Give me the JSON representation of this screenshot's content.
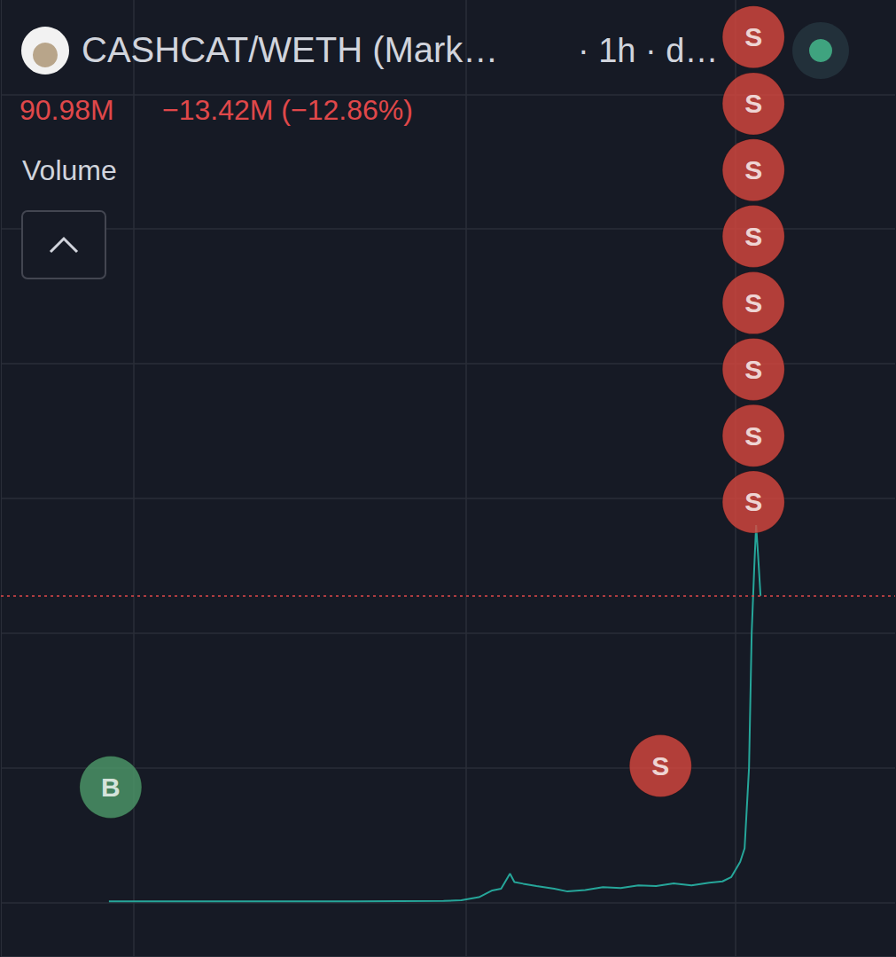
{
  "chart_data": {
    "type": "line",
    "title": "CASHCAT/WETH (Mark…",
    "subtitle": "· 1h · d…",
    "annotations": [
      "90.98M",
      "−13.42M (−12.86%)",
      "Volume"
    ],
    "x": [
      24.4,
      40,
      60,
      80,
      100,
      104,
      108,
      111,
      113,
      115,
      116,
      118,
      121,
      125,
      128,
      132,
      136,
      140,
      144,
      148,
      152,
      156,
      160,
      163,
      165,
      167,
      168,
      169,
      169.6,
      170.2,
      170.6,
      171,
      171.6
    ],
    "values": [
      0.3,
      0.3,
      0.3,
      0.3,
      0.4,
      0.6,
      1.5,
      3.5,
      4,
      8.5,
      6,
      5.5,
      4.8,
      4,
      3.2,
      3.6,
      4.5,
      4.2,
      5,
      4.8,
      5.6,
      5,
      5.8,
      6.2,
      7.5,
      12,
      16,
      40,
      80,
      100,
      112,
      104,
      90.98
    ],
    "color": "#26a69a",
    "xlim": [
      0,
      202
    ],
    "xticks": [
      30,
      105,
      166
    ],
    "ylim": [
      -16,
      268
    ],
    "yticks": [
      0,
      40,
      80,
      120,
      160,
      200,
      240
    ],
    "grid": true,
    "tick_labels": false,
    "markers": [
      {
        "label": "B",
        "x": 24.8,
        "y": 34.2,
        "color": "#4e9a6a"
      },
      {
        "label": "S",
        "x": 149,
        "y": 40.5,
        "color": "#d9473f"
      },
      {
        "label": "S",
        "x": 170,
        "y": 118.9,
        "color": "#d9473f"
      },
      {
        "label": "S",
        "x": 170,
        "y": 138.6,
        "color": "#d9473f"
      },
      {
        "label": "S",
        "x": 170,
        "y": 158.3,
        "color": "#d9473f"
      },
      {
        "label": "S",
        "x": 170,
        "y": 178,
        "color": "#d9473f"
      },
      {
        "label": "S",
        "x": 170,
        "y": 197.8,
        "color": "#d9473f"
      },
      {
        "label": "S",
        "x": 170,
        "y": 217.5,
        "color": "#d9473f"
      },
      {
        "label": "S",
        "x": 170,
        "y": 237.2,
        "color": "#d9473f"
      },
      {
        "label": "S",
        "x": 170,
        "y": 257,
        "color": "#d9473f"
      }
    ]
  }
}
